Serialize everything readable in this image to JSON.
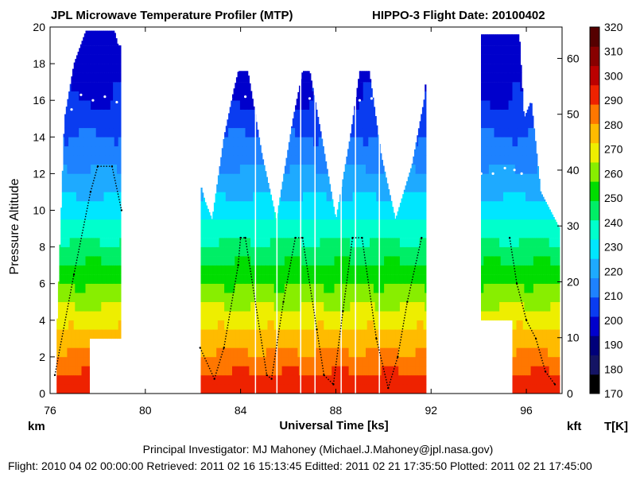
{
  "header": {
    "title": "JPL Microwave Temperature Profiler (MTP)",
    "flight_title": "HIPPO-3  Flight Date: 20100402"
  },
  "footer": {
    "pi": "Principal Investigator: MJ Mahoney (Michael.J.Mahoney@jpl.nasa.gov)",
    "info": "Flight: 2010 04 02 00:00:00   Retrieved: 2011 02 16 15:13:45   Editted: 2011 02 21 17:35:50   Plotted: 2011 02 21 17:45:00"
  },
  "chart_data": {
    "type": "heatmap",
    "xlabel": "Universal Time [ks]",
    "ylabel": "Pressure Altitude",
    "left_unit": "km",
    "right_unit": "kft",
    "colorbar_unit": "T[K]",
    "xlim": [
      76,
      97.5
    ],
    "ylim": [
      0,
      20
    ],
    "xticks": [
      76,
      80,
      84,
      88,
      92,
      96
    ],
    "yticks": [
      0,
      2,
      4,
      6,
      8,
      10,
      12,
      14,
      16,
      18,
      20
    ],
    "kft_ticks": [
      0,
      10,
      20,
      30,
      40,
      50,
      60
    ],
    "colorbar": {
      "range": [
        170,
        320
      ],
      "ticks": [
        170,
        180,
        190,
        200,
        210,
        220,
        230,
        240,
        250,
        260,
        270,
        280,
        290,
        300,
        310,
        320
      ],
      "colors": [
        "#000000",
        "#141464",
        "#00007a",
        "#0000cc",
        "#0a3cf0",
        "#1e82ff",
        "#1eaaff",
        "#00e6ff",
        "#00ffcc",
        "#00ee66",
        "#00dd00",
        "#88ee00",
        "#eeee00",
        "#ffbb00",
        "#ff7700",
        "#ee2200",
        "#bb0000",
        "#880000",
        "#550000"
      ]
    },
    "profile_top": [
      [
        76.3,
        4
      ],
      [
        76.6,
        15
      ],
      [
        77.0,
        18
      ],
      [
        77.5,
        19.8
      ],
      [
        78.2,
        19.8
      ],
      [
        78.7,
        19.8
      ],
      [
        78.85,
        19
      ],
      [
        78.95,
        19
      ],
      [
        82.3,
        11.5
      ],
      [
        82.5,
        10.5
      ],
      [
        82.8,
        9.5
      ],
      [
        83.3,
        14
      ],
      [
        83.7,
        16.5
      ],
      [
        83.9,
        17.6
      ],
      [
        84.3,
        17.6
      ],
      [
        84.9,
        13
      ],
      [
        85.5,
        9.5
      ],
      [
        86.2,
        15
      ],
      [
        86.6,
        17.6
      ],
      [
        86.9,
        17.6
      ],
      [
        87.4,
        14
      ],
      [
        88.0,
        9.5
      ],
      [
        88.6,
        14
      ],
      [
        89.0,
        17.6
      ],
      [
        89.4,
        17.6
      ],
      [
        89.9,
        13
      ],
      [
        90.5,
        9.5
      ],
      [
        91.2,
        12.5
      ],
      [
        91.7,
        16
      ],
      [
        91.8,
        17.5
      ],
      [
        94.1,
        19.6
      ],
      [
        95.0,
        19.6
      ],
      [
        95.7,
        19.6
      ],
      [
        95.9,
        15
      ],
      [
        96.2,
        16
      ],
      [
        96.6,
        11
      ],
      [
        97.0,
        10
      ],
      [
        97.4,
        9
      ]
    ],
    "tropopause": [
      [
        76.5,
        15.0
      ],
      [
        76.9,
        15.5
      ],
      [
        77.3,
        16.3
      ],
      [
        77.8,
        16.0
      ],
      [
        78.3,
        16.2
      ],
      [
        78.8,
        15.9
      ],
      [
        83.6,
        16.1
      ],
      [
        84.2,
        16.2
      ],
      [
        86.3,
        16.2
      ],
      [
        86.9,
        16.1
      ],
      [
        89.0,
        16.0
      ],
      [
        89.5,
        16.1
      ],
      [
        94.1,
        12.0
      ],
      [
        94.6,
        12.0
      ],
      [
        95.1,
        12.3
      ],
      [
        95.5,
        12.2
      ],
      [
        95.8,
        12.0
      ]
    ],
    "aircraft_altitude": [
      [
        76.2,
        1.0
      ],
      [
        77.0,
        6.5
      ],
      [
        77.7,
        11.0
      ],
      [
        78.0,
        12.4
      ],
      [
        78.6,
        12.4
      ],
      [
        79.0,
        10.0
      ],
      [
        82.3,
        2.5
      ],
      [
        82.9,
        0.8
      ],
      [
        83.3,
        2.5
      ],
      [
        83.9,
        7.0
      ],
      [
        84.0,
        8.5
      ],
      [
        84.2,
        8.5
      ],
      [
        85.1,
        1.0
      ],
      [
        85.3,
        0.8
      ],
      [
        85.8,
        5.0
      ],
      [
        86.3,
        8.5
      ],
      [
        86.6,
        8.5
      ],
      [
        87.2,
        3.5
      ],
      [
        87.5,
        1.0
      ],
      [
        87.9,
        0.5
      ],
      [
        88.3,
        4.5
      ],
      [
        88.7,
        8.5
      ],
      [
        89.1,
        8.5
      ],
      [
        89.7,
        3.0
      ],
      [
        90.2,
        0.3
      ],
      [
        90.6,
        2.0
      ],
      [
        91.0,
        5.0
      ],
      [
        91.6,
        8.5
      ],
      [
        95.3,
        8.5
      ],
      [
        95.6,
        6.0
      ],
      [
        96.0,
        4.0
      ],
      [
        96.4,
        3.0
      ],
      [
        96.8,
        1.2
      ],
      [
        97.2,
        0.5
      ]
    ],
    "blank_regions": [
      [
        77.6,
        79.0,
        0,
        3.0
      ]
    ],
    "white_columns": [
      [
        79.0,
        82.3
      ],
      [
        91.8,
        92.0
      ],
      [
        92.1,
        94.0
      ]
    ],
    "stripe_columns": [
      94.1,
      94.3,
      94.5,
      94.7,
      94.9,
      95.1,
      95.3
    ]
  }
}
